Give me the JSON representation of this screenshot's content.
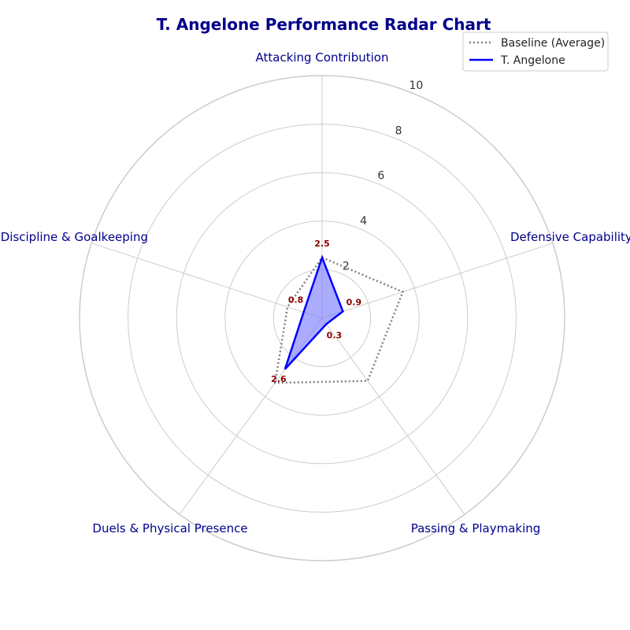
{
  "chart_data": {
    "type": "radar",
    "title": "T. Angelone Performance Radar Chart",
    "categories": [
      "Attacking Contribution",
      "Defensive Capability",
      "Passing & Playmaking",
      "Duels & Physical Presence",
      "Discipline & Goalkeeping"
    ],
    "rlim": [
      0,
      10
    ],
    "r_ticks": [
      "2",
      "4",
      "6",
      "8",
      "10"
    ],
    "grid": true,
    "legend_position": "top-right",
    "series": [
      {
        "name": "Baseline (Average)",
        "values": [
          2.5,
          3.5,
          3.2,
          3.3,
          1.5
        ],
        "color": "#808080",
        "style": "dotted"
      },
      {
        "name": "T. Angelone",
        "values": [
          2.5,
          0.9,
          0.3,
          2.6,
          0.8
        ],
        "labels": [
          "2.5",
          "0.9",
          "0.3",
          "2.6",
          "0.8"
        ],
        "color": "#0000ff",
        "fill": "#8080ff",
        "style": "solid"
      }
    ]
  },
  "colors": {
    "title": "#00008b",
    "axis_label": "#00008b",
    "data_label": "#8b0000",
    "grid": "#cccccc"
  }
}
